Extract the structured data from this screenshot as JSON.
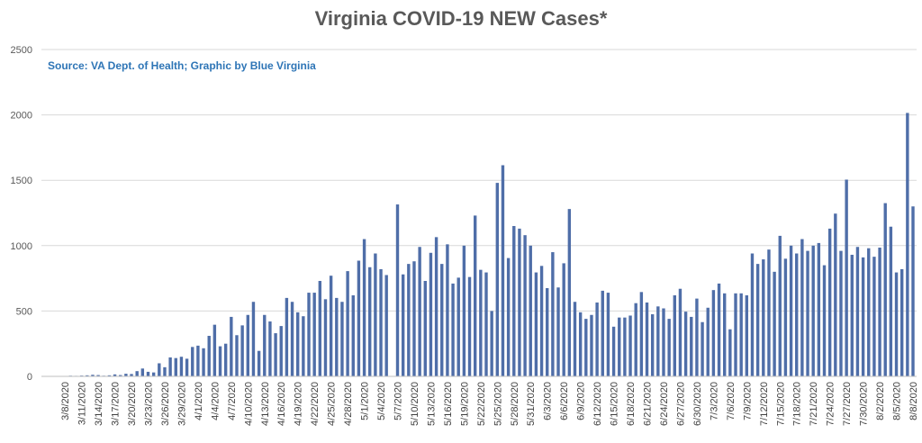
{
  "chart_data": {
    "type": "bar",
    "title": "Virginia COVID-19 NEW Cases*",
    "subtitle": "Source: VA Dept. of Health; Graphic by Blue Virginia",
    "xlabel": "",
    "ylabel": "",
    "ylim": [
      0,
      2500
    ],
    "yticks": [
      0,
      500,
      1000,
      1500,
      2000,
      2500
    ],
    "grid": true,
    "legend": "none",
    "bar_color": "#4f6ea8",
    "start_date": "2020-03-07",
    "x_tick_labels": [
      "3/8/2020",
      "3/11/2020",
      "3/14/2020",
      "3/17/2020",
      "3/20/2020",
      "3/23/2020",
      "3/26/2020",
      "3/29/2020",
      "4/1/2020",
      "4/4/2020",
      "4/7/2020",
      "4/10/2020",
      "4/13/2020",
      "4/16/2020",
      "4/19/2020",
      "4/22/2020",
      "4/25/2020",
      "4/28/2020",
      "5/1/2020",
      "5/4/2020",
      "5/7/2020",
      "5/10/2020",
      "5/13/2020",
      "5/16/2020",
      "5/19/2020",
      "5/22/2020",
      "5/25/2020",
      "5/28/2020",
      "5/31/2020",
      "6/3/2020",
      "6/6/2020",
      "6/9/2020",
      "6/12/2020",
      "6/15/2020",
      "6/18/2020",
      "6/21/2020",
      "6/24/2020",
      "6/27/2020",
      "6/30/2020",
      "7/3/2020",
      "7/6/2020",
      "7/9/2020",
      "7/12/2020",
      "7/15/2020",
      "7/18/2020",
      "7/21/2020",
      "7/24/2020",
      "7/27/2020",
      "7/30/2020",
      "8/2/2020",
      "8/5/2020",
      "8/8/2020"
    ],
    "values": [
      2,
      3,
      5,
      4,
      6,
      8,
      12,
      10,
      5,
      8,
      15,
      10,
      20,
      18,
      40,
      60,
      35,
      30,
      100,
      70,
      145,
      140,
      150,
      135,
      225,
      235,
      215,
      310,
      395,
      230,
      250,
      455,
      315,
      390,
      470,
      570,
      195,
      470,
      420,
      330,
      385,
      600,
      570,
      490,
      460,
      640,
      640,
      730,
      590,
      770,
      600,
      570,
      805,
      620,
      885,
      1050,
      835,
      940,
      820,
      775,
      0,
      1315,
      780,
      860,
      880,
      990,
      730,
      945,
      1065,
      860,
      1010,
      710,
      755,
      1000,
      760,
      1230,
      815,
      795,
      500,
      1480,
      1615,
      905,
      1150,
      1130,
      1080,
      1000,
      795,
      845,
      675,
      950,
      680,
      865,
      1280,
      570,
      490,
      440,
      470,
      565,
      655,
      640,
      380,
      450,
      450,
      465,
      560,
      645,
      565,
      475,
      535,
      520,
      440,
      620,
      670,
      495,
      455,
      595,
      415,
      525,
      660,
      710,
      635,
      360,
      635,
      635,
      620,
      940,
      860,
      895,
      970,
      800,
      1075,
      900,
      1000,
      940,
      1050,
      960,
      1000,
      1020,
      850,
      1130,
      1245,
      960,
      1505,
      930,
      990,
      910,
      980,
      915,
      985,
      1325,
      1145,
      795,
      820,
      2015,
      1300
    ]
  }
}
